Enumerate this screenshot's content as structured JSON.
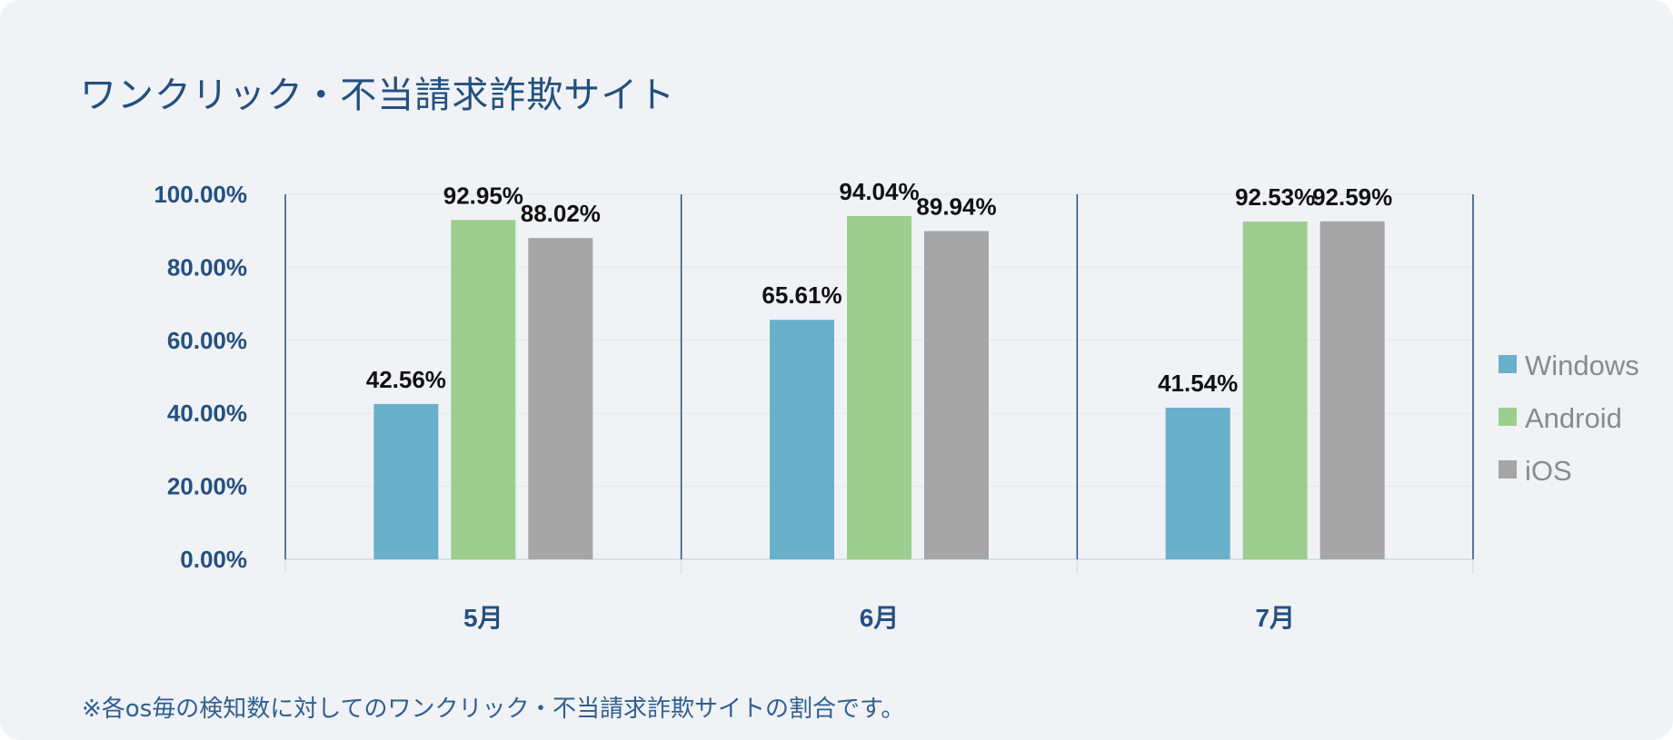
{
  "title": "ワンクリック・不当請求詐欺サイト",
  "footnote": "※各os毎の検知数に対してのワンクリック・不当請求詐欺サイトの割合です。",
  "chart_data": {
    "type": "bar",
    "categories": [
      "5月",
      "6月",
      "7月"
    ],
    "series": [
      {
        "name": "Windows",
        "color": "#6ab0cb",
        "values": [
          42.56,
          65.61,
          41.54
        ],
        "labels": [
          "42.56%",
          "65.61%",
          "41.54%"
        ]
      },
      {
        "name": "Android",
        "color": "#9bce8f",
        "values": [
          92.95,
          94.04,
          92.53
        ],
        "labels": [
          "92.95%",
          "94.04%",
          "92.53%"
        ]
      },
      {
        "name": "iOS",
        "color": "#a6a6a6",
        "values": [
          88.02,
          89.94,
          92.59
        ],
        "labels": [
          "88.02%",
          "89.94%",
          "92.59%"
        ]
      }
    ],
    "yticks": [
      "0.00%",
      "20.00%",
      "40.00%",
      "60.00%",
      "80.00%",
      "100.00%"
    ],
    "ylim": [
      0,
      100
    ],
    "grid": true,
    "legend": "right"
  }
}
